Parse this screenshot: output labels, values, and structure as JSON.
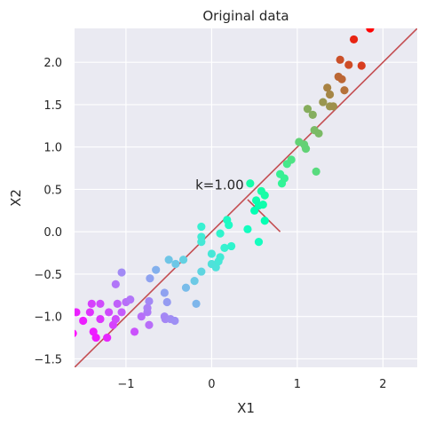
{
  "chart_data": {
    "type": "scatter",
    "title": "Original data",
    "xlabel": "X1",
    "ylabel": "X2",
    "xlim": [
      -1.6,
      2.4
    ],
    "ylim": [
      -1.6,
      2.4
    ],
    "xticks": [
      -1,
      0,
      1,
      2
    ],
    "yticks": [
      -1.5,
      -1.0,
      -0.5,
      0.0,
      0.5,
      1.0,
      1.5,
      2.0
    ],
    "xtick_labels": [
      "−1",
      "0",
      "1",
      "2"
    ],
    "ytick_labels": [
      "−1.5",
      "−1.0",
      "−0.5",
      "0.0",
      "0.5",
      "1.0",
      "1.5",
      "2.0"
    ],
    "grid": true,
    "background": "#EAEAF2",
    "colormap": "rainbow",
    "line_color": "#C44E52",
    "fit_line": {
      "x": [
        -1.6,
        2.45
      ],
      "y": [
        -1.6,
        2.45
      ]
    },
    "normal_segment": {
      "x": [
        0.42,
        0.8
      ],
      "y": [
        0.38,
        0.0
      ]
    },
    "annotation": {
      "text": "k=1.00",
      "x": -0.19,
      "y": 0.5
    },
    "points": [
      {
        "x": -1.62,
        "y": -1.2
      },
      {
        "x": -1.58,
        "y": -0.95
      },
      {
        "x": -1.5,
        "y": -1.05
      },
      {
        "x": -1.42,
        "y": -0.95
      },
      {
        "x": -1.4,
        "y": -0.85
      },
      {
        "x": -1.38,
        "y": -1.18
      },
      {
        "x": -1.35,
        "y": -1.25
      },
      {
        "x": -1.3,
        "y": -0.85
      },
      {
        "x": -1.3,
        "y": -1.03
      },
      {
        "x": -1.22,
        "y": -1.25
      },
      {
        "x": -1.2,
        "y": -0.95
      },
      {
        "x": -1.15,
        "y": -1.1
      },
      {
        "x": -1.12,
        "y": -1.03
      },
      {
        "x": -1.1,
        "y": -0.85
      },
      {
        "x": -1.12,
        "y": -0.62
      },
      {
        "x": -1.05,
        "y": -0.48
      },
      {
        "x": -1.05,
        "y": -0.95
      },
      {
        "x": -1.0,
        "y": -0.83
      },
      {
        "x": -0.95,
        "y": -0.8
      },
      {
        "x": -0.9,
        "y": -1.18
      },
      {
        "x": -0.82,
        "y": -1.0
      },
      {
        "x": -0.75,
        "y": -0.95
      },
      {
        "x": -0.73,
        "y": -0.82
      },
      {
        "x": -0.75,
        "y": -0.9
      },
      {
        "x": -0.72,
        "y": -0.55
      },
      {
        "x": -0.73,
        "y": -1.1
      },
      {
        "x": -0.65,
        "y": -0.45
      },
      {
        "x": -0.55,
        "y": -1.0
      },
      {
        "x": -0.54,
        "y": -1.03
      },
      {
        "x": -0.55,
        "y": -0.72
      },
      {
        "x": -0.52,
        "y": -0.83
      },
      {
        "x": -0.48,
        "y": -1.03
      },
      {
        "x": -0.5,
        "y": -0.33
      },
      {
        "x": -0.43,
        "y": -1.05
      },
      {
        "x": -0.42,
        "y": -0.38
      },
      {
        "x": -0.33,
        "y": -0.33
      },
      {
        "x": -0.3,
        "y": -0.66
      },
      {
        "x": -0.2,
        "y": -0.58
      },
      {
        "x": -0.18,
        "y": -0.85
      },
      {
        "x": -0.12,
        "y": -0.47
      },
      {
        "x": -0.12,
        "y": -0.06
      },
      {
        "x": -0.12,
        "y": -0.12
      },
      {
        "x": -0.12,
        "y": 0.06
      },
      {
        "x": 0.0,
        "y": -0.38
      },
      {
        "x": 0.0,
        "y": -0.26
      },
      {
        "x": 0.05,
        "y": -0.42
      },
      {
        "x": 0.08,
        "y": -0.35
      },
      {
        "x": 0.1,
        "y": -0.3
      },
      {
        "x": 0.1,
        "y": -0.02
      },
      {
        "x": 0.15,
        "y": -0.19
      },
      {
        "x": 0.2,
        "y": 0.08
      },
      {
        "x": 0.18,
        "y": 0.14
      },
      {
        "x": 0.23,
        "y": -0.17
      },
      {
        "x": 0.42,
        "y": 0.03
      },
      {
        "x": 0.45,
        "y": 0.57
      },
      {
        "x": 0.5,
        "y": 0.25
      },
      {
        "x": 0.52,
        "y": 0.37
      },
      {
        "x": 0.55,
        "y": 0.31
      },
      {
        "x": 0.55,
        "y": -0.12
      },
      {
        "x": 0.58,
        "y": 0.48
      },
      {
        "x": 0.6,
        "y": 0.32
      },
      {
        "x": 0.62,
        "y": 0.43
      },
      {
        "x": 0.62,
        "y": 0.13
      },
      {
        "x": 0.8,
        "y": 0.68
      },
      {
        "x": 0.82,
        "y": 0.57
      },
      {
        "x": 0.85,
        "y": 0.63
      },
      {
        "x": 0.88,
        "y": 0.8
      },
      {
        "x": 0.93,
        "y": 0.85
      },
      {
        "x": 1.02,
        "y": 1.06
      },
      {
        "x": 1.08,
        "y": 1.03
      },
      {
        "x": 1.1,
        "y": 0.98
      },
      {
        "x": 1.12,
        "y": 1.45
      },
      {
        "x": 1.18,
        "y": 1.38
      },
      {
        "x": 1.2,
        "y": 1.2
      },
      {
        "x": 1.22,
        "y": 0.71
      },
      {
        "x": 1.25,
        "y": 1.16
      },
      {
        "x": 1.3,
        "y": 1.53
      },
      {
        "x": 1.35,
        "y": 1.7
      },
      {
        "x": 1.38,
        "y": 1.62
      },
      {
        "x": 1.38,
        "y": 1.48
      },
      {
        "x": 1.42,
        "y": 1.48
      },
      {
        "x": 1.48,
        "y": 1.83
      },
      {
        "x": 1.5,
        "y": 2.03
      },
      {
        "x": 1.52,
        "y": 1.8
      },
      {
        "x": 1.55,
        "y": 1.67
      },
      {
        "x": 1.6,
        "y": 1.97
      },
      {
        "x": 1.66,
        "y": 2.27
      },
      {
        "x": 1.75,
        "y": 1.96
      },
      {
        "x": 1.85,
        "y": 2.4
      }
    ]
  }
}
